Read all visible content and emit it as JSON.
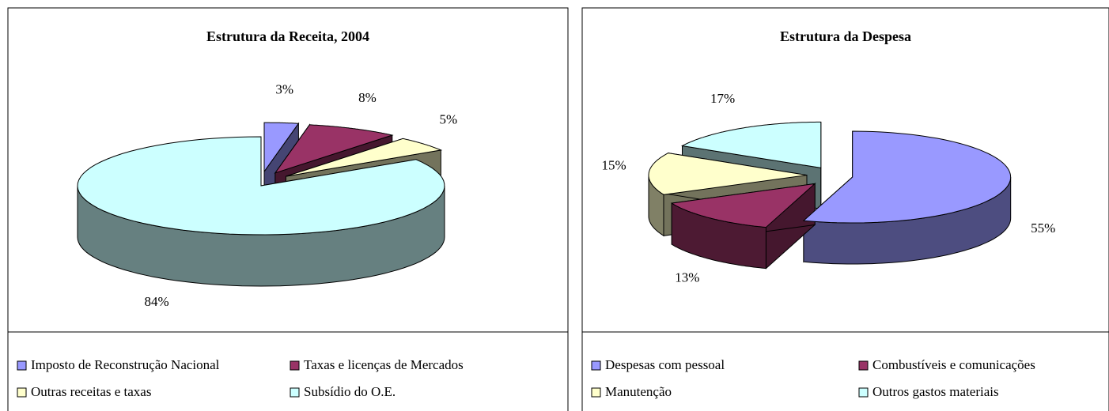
{
  "chart_data": [
    {
      "type": "pie",
      "title": "Estrutura da Receita, 2004",
      "categories": [
        "Imposto de Reconstrução Nacional",
        "Taxas e licenças de Mercados",
        "Outras receitas e taxas",
        "Subsídio do O.E."
      ],
      "values": [
        3,
        8,
        5,
        84
      ],
      "value_labels": [
        "3%",
        "8%",
        "5%",
        "84%"
      ],
      "colors": [
        "#9999ff",
        "#993366",
        "#ffffcc",
        "#ccffff"
      ]
    },
    {
      "type": "pie",
      "title": "Estrutura da Despesa",
      "categories": [
        "Despesas com pessoal",
        "Combustíveis e comunicações",
        "Manutenção",
        "Outros gastos materiais"
      ],
      "values": [
        55,
        13,
        15,
        17
      ],
      "value_labels": [
        "55%",
        "13%",
        "15%",
        "17%"
      ],
      "colors": [
        "#9999ff",
        "#993366",
        "#ffffcc",
        "#ccffff"
      ]
    }
  ]
}
